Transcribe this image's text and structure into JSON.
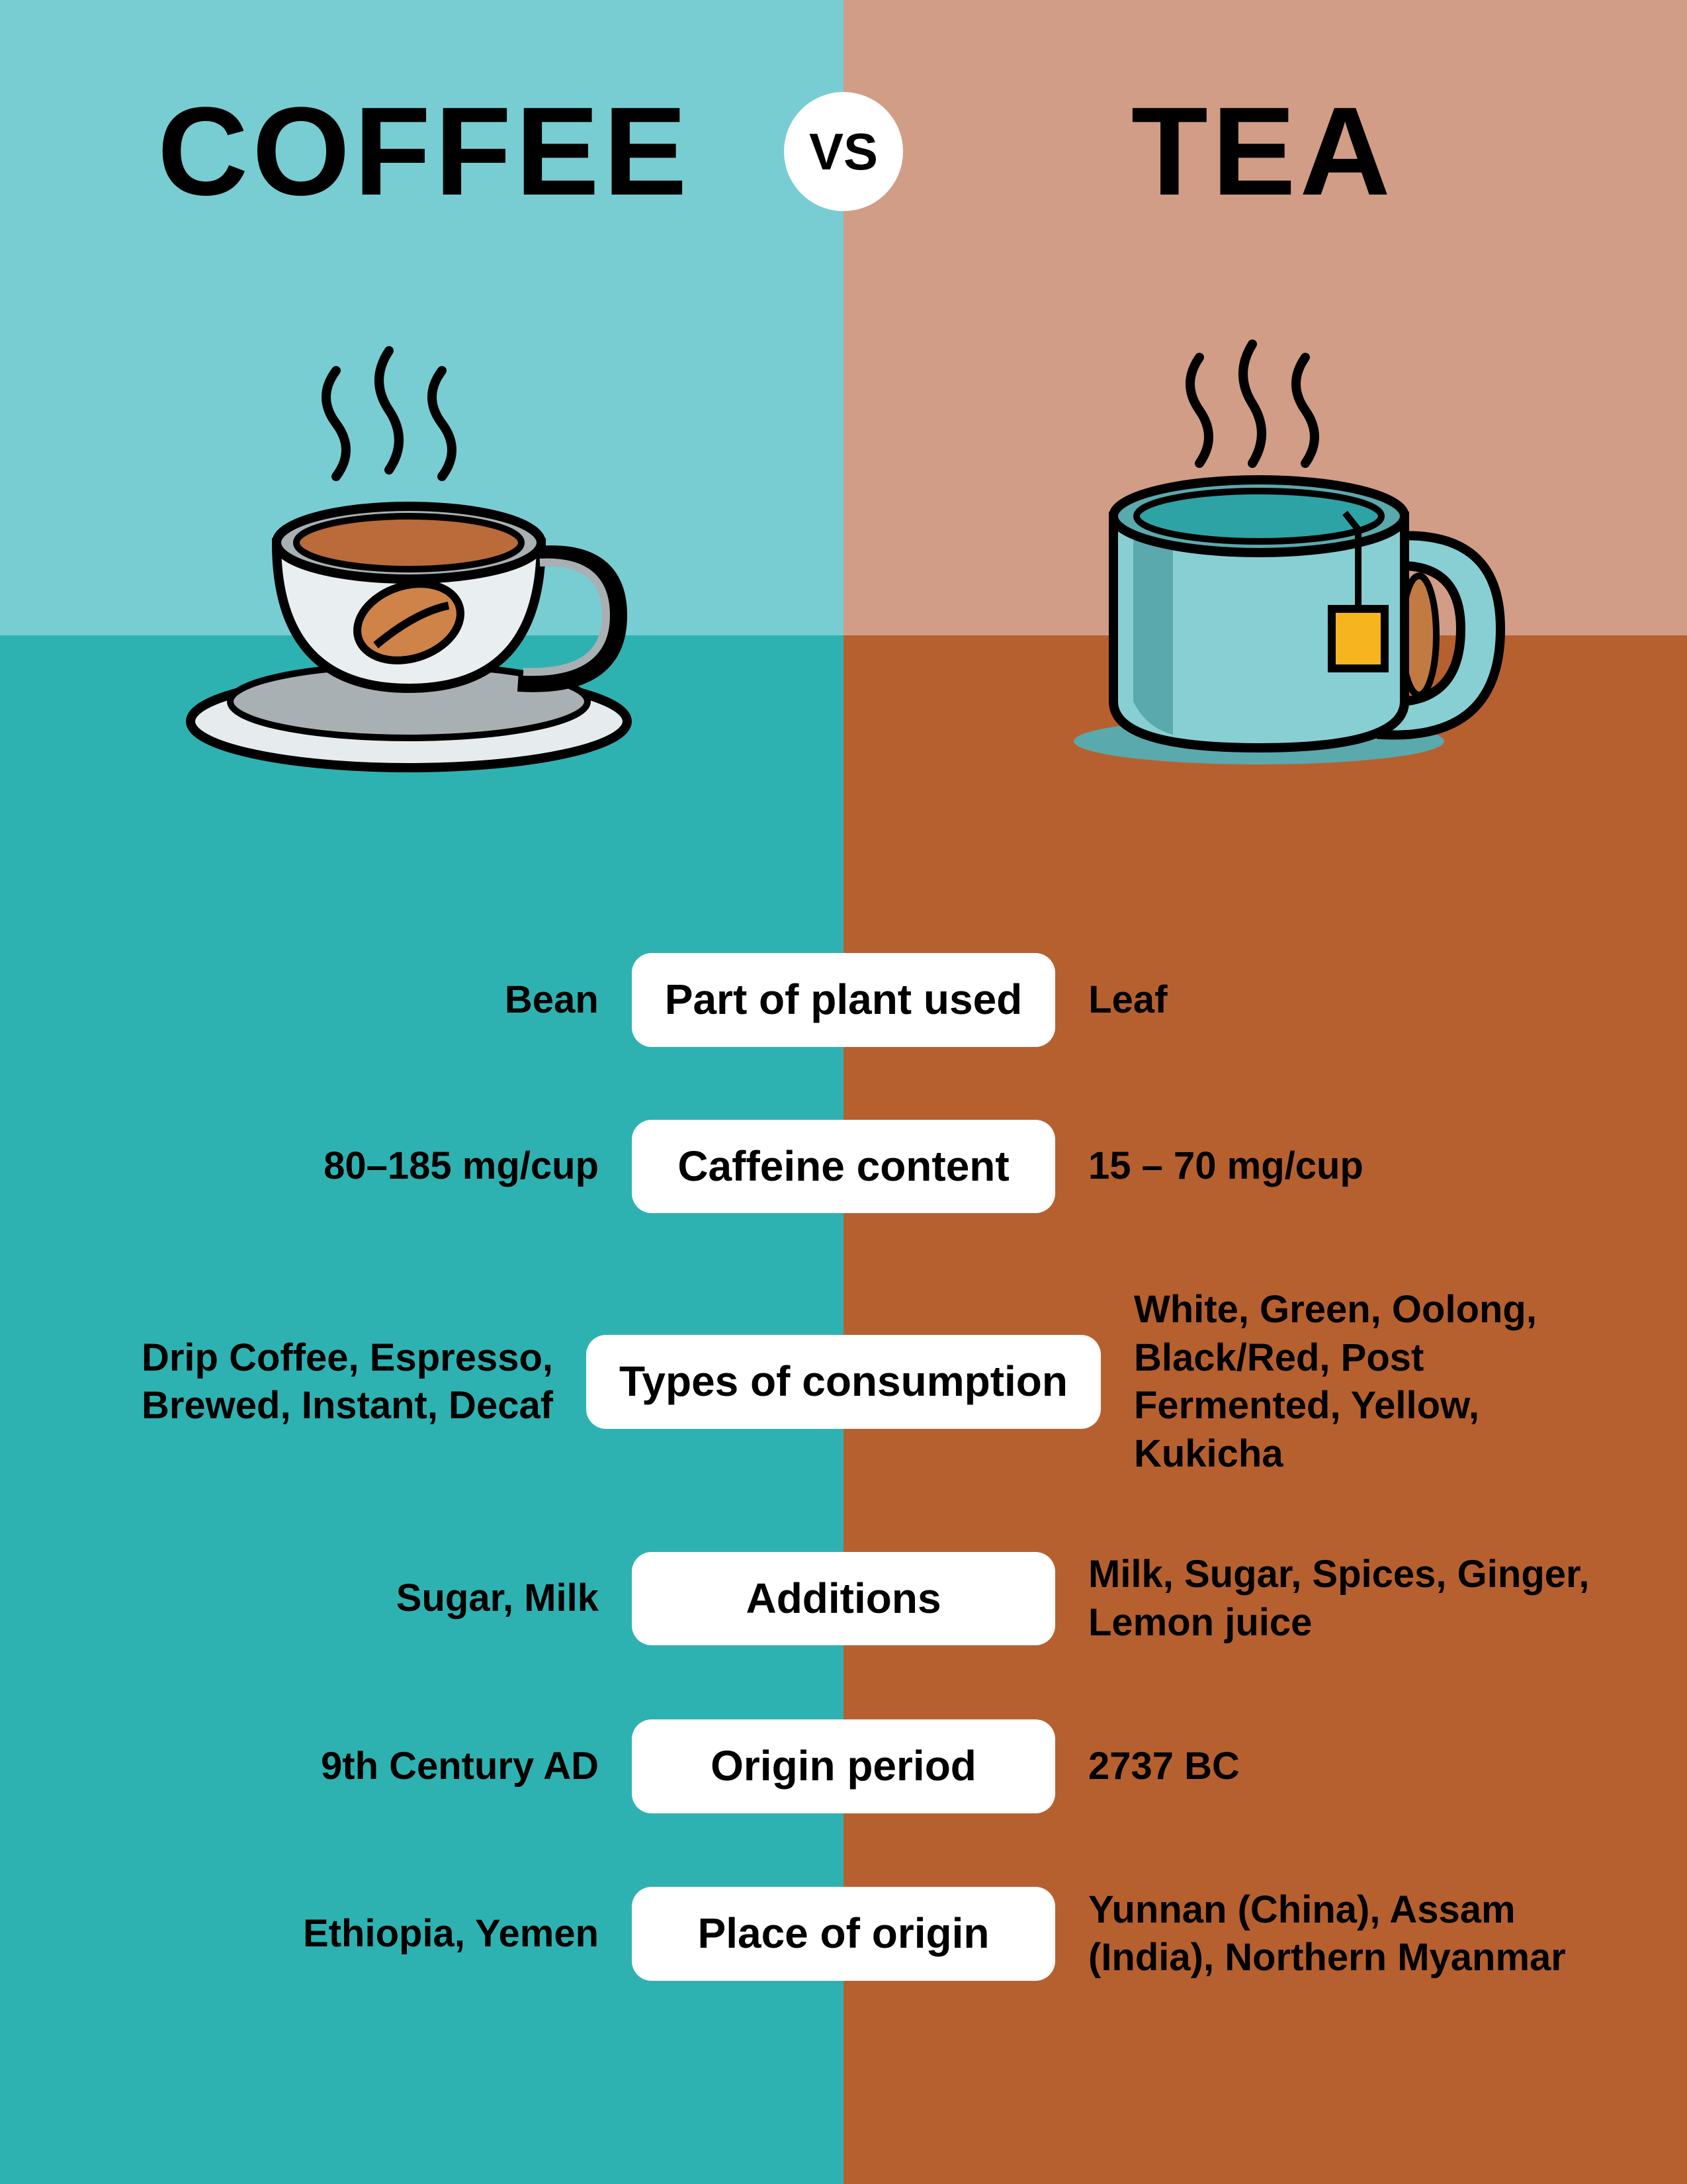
{
  "colors": {
    "bg_top_left": "#78cdd2",
    "bg_top_right": "#d19d86",
    "bg_bottom_left": "#2eb2b1",
    "bg_bottom_right": "#b7602f",
    "pill_bg": "#ffffff",
    "text": "#000000",
    "title_color": "#000000"
  },
  "header": {
    "left_title": "COFFEE",
    "right_title": "TEA",
    "vs_label": "VS"
  },
  "illustrations": {
    "coffee": {
      "stroke": "#000000",
      "cup_fill": "#e9eef0",
      "saucer_fill": "#e6ecee",
      "liquid_fill": "#bb6b39",
      "bean_fill": "#cf8349",
      "interior_shadow": "#a8b0b3"
    },
    "tea": {
      "stroke": "#000000",
      "mug_fill": "#88cfd3",
      "mug_shadow": "#5aa9ad",
      "interior": "#2ea3a6",
      "handle_inner": "#c27a43",
      "tag_fill": "#f6b51e"
    }
  },
  "rows": [
    {
      "left": "Bean",
      "label": "Part of plant used",
      "right": "Leaf"
    },
    {
      "left": "80–185 mg/cup",
      "label": "Caffeine content",
      "right": "15 – 70 mg/cup"
    },
    {
      "left": "Drip Coffee, Espresso, Brewed, Instant, Decaf",
      "label": "Types of consumption",
      "right": "White, Green, Oolong, Black/Red, Post Fermented, Yellow, Kukicha"
    },
    {
      "left": "Sugar, Milk",
      "label": "Additions",
      "right": "Milk, Sugar, Spices, Ginger, Lemon juice"
    },
    {
      "left": "9th Century AD",
      "label": "Origin period",
      "right": "2737 BC"
    },
    {
      "left": "Ethiopia, Yemen",
      "label": "Place of origin",
      "right": "Yunnan (China), Assam (India), Northern Myanmar"
    }
  ]
}
